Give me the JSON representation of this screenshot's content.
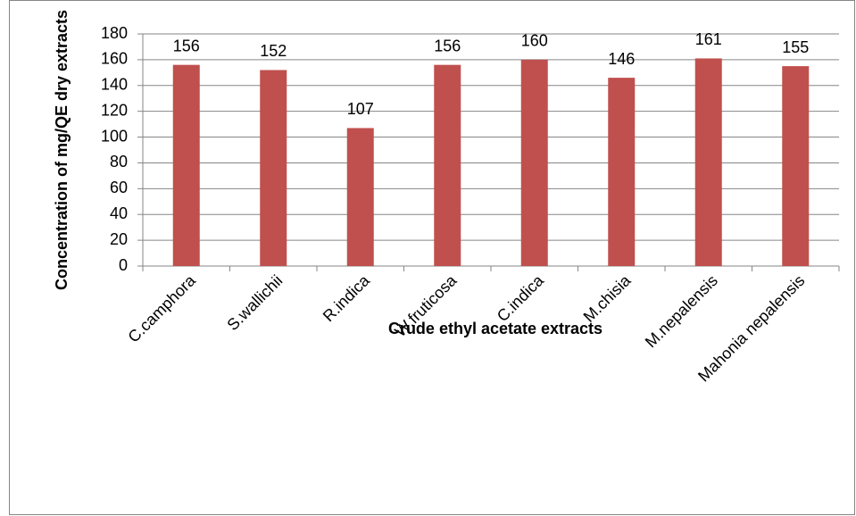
{
  "chart_data": {
    "type": "bar",
    "categories": [
      "C.camphora",
      "S.wallichii",
      "R.indica",
      "W.fruticosa",
      "C.indica",
      "M.chisia",
      "M.nepalensis",
      "Mahonia nepalensis"
    ],
    "values": [
      156,
      152,
      107,
      156,
      160,
      146,
      161,
      155
    ],
    "color": "#c0504d",
    "x_label": "Crude ethyl acetate extracts",
    "y_label": "Concentration of mg/QE dry extracts",
    "ylim": [
      0,
      180
    ],
    "yticks": [
      0,
      20,
      40,
      60,
      80,
      100,
      120,
      140,
      160,
      180
    ],
    "grid": true
  }
}
